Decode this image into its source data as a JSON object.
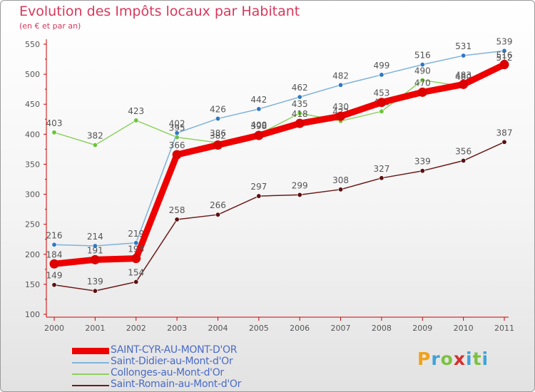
{
  "header": {
    "title": "Evolution des Impôts locaux par Habitant",
    "subtitle": "(en € et par an)"
  },
  "logo": {
    "letters": [
      "P",
      "r",
      "o",
      "x",
      "i",
      "t",
      "i"
    ],
    "colors": [
      "#f0a21a",
      "#3fa3d8",
      "#7cc242",
      "#d62f2f",
      "#3fa3d8",
      "#7cc242",
      "#3fa3d8"
    ]
  },
  "chart_data": {
    "type": "line",
    "title": "Evolution des Impôts locaux par Habitant",
    "subtitle": "(en € et par an)",
    "x": [
      "2000",
      "2001",
      "2002",
      "2003",
      "2004",
      "2005",
      "2006",
      "2007",
      "2008",
      "2009",
      "2010",
      "2011"
    ],
    "ylim": [
      100,
      550
    ],
    "yticks": [
      "100",
      "150",
      "200",
      "250",
      "300",
      "350",
      "400",
      "450",
      "500",
      "550"
    ],
    "grid": false,
    "legend_position": "bottom-left",
    "series": [
      {
        "name": "Saint-Romain-au-Mont-d'Or",
        "values": [
          149,
          139,
          154,
          258,
          266,
          297,
          299,
          308,
          327,
          339,
          356,
          387
        ],
        "labels": [
          "149",
          "139",
          "154",
          "258",
          "266",
          "297",
          "299",
          "308",
          "327",
          "339",
          "356",
          "387"
        ],
        "color": "#6e1a1a",
        "marker": "#5a1010"
      },
      {
        "name": "Collonges-au-Mont-d'Or",
        "values": [
          403,
          382,
          423,
          395,
          386,
          400,
          435,
          422,
          438,
          490,
          480,
          512
        ],
        "labels": [
          "403",
          "382",
          "423",
          "395",
          "386",
          "400",
          "435",
          "422",
          "438",
          "490",
          "480",
          "512"
        ],
        "color": "#8fd160",
        "marker": "#6cc33a"
      },
      {
        "name": "Saint-Didier-au-Mont-d'Or",
        "values": [
          216,
          214,
          219,
          402,
          426,
          442,
          462,
          482,
          499,
          516,
          531,
          539
        ],
        "labels": [
          "216",
          "214",
          "219",
          "402",
          "426",
          "442",
          "462",
          "482",
          "499",
          "516",
          "531",
          "539"
        ],
        "color": "#7fb3dc",
        "marker": "#2f78c4"
      },
      {
        "name": "SAINT-CYR-AU-MONT-D'OR",
        "values": [
          184,
          191,
          193,
          366,
          382,
          398,
          418,
          430,
          453,
          470,
          483,
          516
        ],
        "labels": [
          "184",
          "191",
          "193",
          "366",
          "382",
          "398",
          "418",
          "430",
          "453",
          "470",
          "483",
          "516"
        ],
        "color": "#ee0000",
        "marker": "#dd0000"
      }
    ],
    "legend_order": [
      "SAINT-CYR-AU-MONT-D'OR",
      "Saint-Didier-au-Mont-d'Or",
      "Collonges-au-Mont-d'Or",
      "Saint-Romain-au-Mont-d'Or"
    ]
  }
}
